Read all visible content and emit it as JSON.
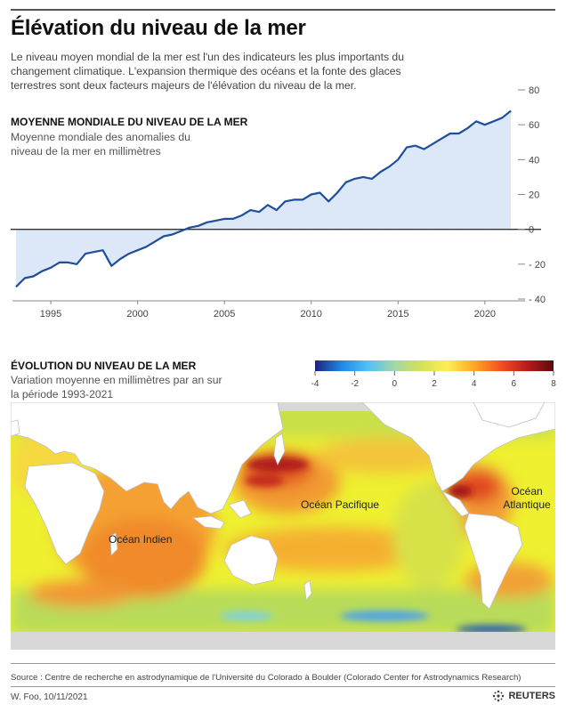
{
  "title": "Élévation du niveau de la mer",
  "intro": "Le niveau moyen mondial de la mer est l'un des indicateurs les plus importants du changement climatique. L'expansion thermique des océans et la fonte des glaces terrestres sont deux facteurs majeurs de l'élévation du niveau de la mer.",
  "section1": {
    "title": "MOYENNE MONDIALE DU NIVEAU DE LA MER",
    "subtitle": "Moyenne mondiale des anomalies du niveau de la mer en millimètres"
  },
  "section2": {
    "title": "ÉVOLUTION DU NIVEAU DE LA MER",
    "subtitle": "Variation moyenne en millimètres par an sur la période 1993-2021"
  },
  "colorbar": {
    "ticks": [
      "-4",
      "-2",
      "0",
      "2",
      "4",
      "6",
      "8"
    ],
    "colors": [
      "#1a237e",
      "#1e88e5",
      "#4fc3f7",
      "#a5d6a7",
      "#d4e157",
      "#ffee58",
      "#ffa726",
      "#f4511e",
      "#b71c1c",
      "#5d0a0a"
    ]
  },
  "map": {
    "ocean_indian": "Océan Indien",
    "ocean_pacific": "Océan Pacifique",
    "ocean_atlantic_1": "Océan",
    "ocean_atlantic_2": "Atlantique"
  },
  "source": "Source : Centre de recherche en astrodynamique de l'Université du Colorado à Boulder (Colorado Center for Astrodynamics Research)",
  "credit": "W. Foo, 10/11/2021",
  "brand": "REUTERS",
  "chart_data": {
    "type": "area",
    "title": "MOYENNE MONDIALE DU NIVEAU DE LA MER",
    "subtitle": "Moyenne mondiale des anomalies du niveau de la mer en millimètres",
    "xlim": [
      1993,
      2021.7
    ],
    "ylim": [
      -40,
      80
    ],
    "yticks": [
      -40,
      -20,
      0,
      20,
      40,
      60,
      80
    ],
    "xticks": [
      1995,
      2000,
      2005,
      2010,
      2015,
      2020
    ],
    "grid": "horizontal zero line only",
    "series_color": "#1f4e9b",
    "fill_color": "#dce8f7",
    "x": [
      1993.0,
      1993.5,
      1994.0,
      1994.5,
      1995.0,
      1995.5,
      1996.0,
      1996.5,
      1997.0,
      1997.5,
      1998.0,
      1998.5,
      1999.0,
      1999.5,
      2000.0,
      2000.5,
      2001.0,
      2001.5,
      2002.0,
      2002.5,
      2003.0,
      2003.5,
      2004.0,
      2004.5,
      2005.0,
      2005.5,
      2006.0,
      2006.5,
      2007.0,
      2007.5,
      2008.0,
      2008.5,
      2009.0,
      2009.5,
      2010.0,
      2010.5,
      2011.0,
      2011.5,
      2012.0,
      2012.5,
      2013.0,
      2013.5,
      2014.0,
      2014.5,
      2015.0,
      2015.5,
      2016.0,
      2016.5,
      2017.0,
      2017.5,
      2018.0,
      2018.5,
      2019.0,
      2019.5,
      2020.0,
      2020.5,
      2021.0,
      2021.5
    ],
    "y": [
      -33,
      -28,
      -27,
      -24,
      -22,
      -19,
      -19,
      -20,
      -14,
      -13,
      -12,
      -21,
      -17,
      -14,
      -12,
      -10,
      -7,
      -4,
      -3,
      -1,
      1,
      2,
      4,
      5,
      6,
      6,
      8,
      11,
      10,
      14,
      11,
      16,
      17,
      17,
      20,
      21,
      16,
      21,
      27,
      29,
      30,
      29,
      33,
      36,
      40,
      47,
      48,
      46,
      49,
      52,
      55,
      55,
      58,
      62,
      60,
      62,
      64,
      68
    ]
  }
}
